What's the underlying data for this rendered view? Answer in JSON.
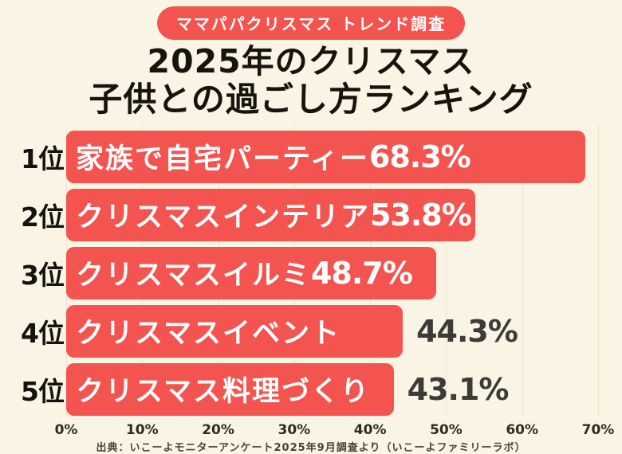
{
  "badge": {
    "label": "ママパパクリスマス トレンド調査"
  },
  "title": {
    "line1": "2025年のクリスマス",
    "line2": "子供との過ごし方ランキング"
  },
  "chart_data": {
    "type": "bar",
    "orientation": "horizontal",
    "title": "2025年のクリスマス 子供との過ごし方ランキング",
    "ranks": [
      "1位",
      "2位",
      "3位",
      "4位",
      "5位"
    ],
    "categories": [
      "家族で自宅パーティー",
      "クリスマスインテリア",
      "クリスマスイルミ",
      "クリスマスイベント",
      "クリスマス料理づくり"
    ],
    "values": [
      68.3,
      53.8,
      48.7,
      44.3,
      43.1
    ],
    "value_labels": [
      "68.3%",
      "53.8%",
      "48.7%",
      "44.3%",
      "43.1%"
    ],
    "value_label_positions": [
      "inside",
      "inside",
      "inside",
      "outside",
      "outside"
    ],
    "xlim": [
      0,
      70
    ],
    "x_ticks": [
      "0%",
      "10%",
      "20%",
      "30%",
      "40%",
      "50%",
      "60%",
      "70%"
    ],
    "grid": true,
    "legend": "none",
    "bar_color": "#F4544F",
    "outside_label_color": "#3C3B38",
    "background_color": "#FAF4E4",
    "gridline_color": "#E9E2CF"
  },
  "footer": {
    "source": "出典：いこーよモニターアンケート2025年9月調査より（いこーよファミリーラボ）"
  }
}
